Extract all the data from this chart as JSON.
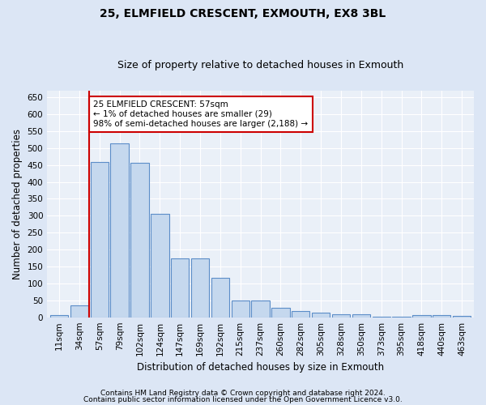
{
  "title1": "25, ELMFIELD CRESCENT, EXMOUTH, EX8 3BL",
  "title2": "Size of property relative to detached houses in Exmouth",
  "xlabel": "Distribution of detached houses by size in Exmouth",
  "ylabel": "Number of detached properties",
  "footnote1": "Contains HM Land Registry data © Crown copyright and database right 2024.",
  "footnote2": "Contains public sector information licensed under the Open Government Licence v3.0.",
  "categories": [
    "11sqm",
    "34sqm",
    "57sqm",
    "79sqm",
    "102sqm",
    "124sqm",
    "147sqm",
    "169sqm",
    "192sqm",
    "215sqm",
    "237sqm",
    "260sqm",
    "282sqm",
    "305sqm",
    "328sqm",
    "350sqm",
    "373sqm",
    "395sqm",
    "418sqm",
    "440sqm",
    "463sqm"
  ],
  "values": [
    7,
    35,
    460,
    513,
    457,
    305,
    175,
    175,
    116,
    50,
    50,
    27,
    19,
    13,
    9,
    9,
    2,
    2,
    7,
    7,
    4
  ],
  "bar_color": "#c5d8ee",
  "bar_edge_color": "#5b8dc8",
  "vline_x_offset": 1.5,
  "vline_color": "#cc0000",
  "annotation_line1": "25 ELMFIELD CRESCENT: 57sqm",
  "annotation_line2": "← 1% of detached houses are smaller (29)",
  "annotation_line3": "98% of semi-detached houses are larger (2,188) →",
  "annotation_box_color": "#ffffff",
  "annotation_box_edge_color": "#cc0000",
  "ylim": [
    0,
    670
  ],
  "yticks": [
    0,
    50,
    100,
    150,
    200,
    250,
    300,
    350,
    400,
    450,
    500,
    550,
    600,
    650
  ],
  "bg_color": "#dce6f5",
  "plot_bg_color": "#eaf0f8",
  "title1_fontsize": 10,
  "title2_fontsize": 9,
  "xlabel_fontsize": 8.5,
  "ylabel_fontsize": 8.5,
  "tick_fontsize": 7.5,
  "annot_fontsize": 7.5,
  "footnote_fontsize": 6.5
}
